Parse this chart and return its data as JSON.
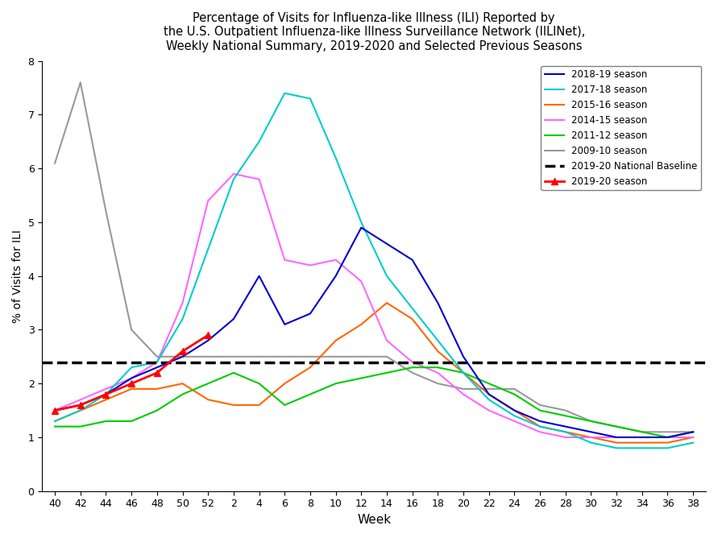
{
  "title": "Percentage of Visits for Influenza-like Illness (ILI) Reported by\nthe U.S. Outpatient Influenza-like Illness Surveillance Network (IILINet),\nWeekly National Summary, 2019-2020 and Selected Previous Seasons",
  "xlabel": "Week",
  "ylabel": "% of Visits for ILI",
  "ylim": [
    0,
    8
  ],
  "baseline": 2.4,
  "x_tick_labels": [
    "40",
    "42",
    "44",
    "46",
    "48",
    "50",
    "52",
    "2",
    "4",
    "6",
    "8",
    "10",
    "12",
    "14",
    "16",
    "18",
    "20",
    "22",
    "24",
    "26",
    "28",
    "30",
    "32",
    "34",
    "36",
    "38"
  ],
  "seasons": {
    "2018-19 season": {
      "color": "#0000CC",
      "linestyle": "-",
      "linewidth": 1.5,
      "marker": null,
      "zorder": 5,
      "data": [
        1.5,
        1.6,
        1.8,
        2.1,
        2.3,
        2.5,
        2.8,
        3.2,
        4.0,
        3.1,
        3.3,
        4.0,
        4.9,
        4.6,
        4.3,
        3.5,
        2.5,
        1.8,
        1.5,
        1.3,
        1.2,
        1.1,
        1.0,
        1.0,
        1.0,
        1.1
      ]
    },
    "2017-18 season": {
      "color": "#00CCCC",
      "linestyle": "-",
      "linewidth": 1.5,
      "marker": null,
      "zorder": 4,
      "data": [
        1.3,
        1.5,
        1.8,
        2.3,
        2.4,
        3.2,
        4.5,
        5.8,
        6.5,
        7.4,
        7.3,
        6.2,
        5.0,
        4.0,
        3.4,
        2.8,
        2.2,
        1.7,
        1.4,
        1.2,
        1.1,
        0.9,
        0.8,
        0.8,
        0.8,
        0.9
      ]
    },
    "2015-16 season": {
      "color": "#FF6600",
      "linestyle": "-",
      "linewidth": 1.5,
      "marker": null,
      "zorder": 3,
      "data": [
        1.3,
        1.5,
        1.7,
        1.9,
        1.9,
        2.0,
        1.7,
        1.6,
        1.6,
        2.0,
        2.3,
        2.8,
        3.1,
        3.5,
        3.2,
        2.6,
        2.2,
        1.8,
        1.5,
        1.2,
        1.1,
        1.0,
        0.9,
        0.9,
        0.9,
        1.0
      ]
    },
    "2014-15 season": {
      "color": "#FF66FF",
      "linestyle": "-",
      "linewidth": 1.5,
      "marker": null,
      "zorder": 3,
      "data": [
        1.5,
        1.7,
        1.9,
        2.1,
        2.4,
        3.5,
        5.4,
        5.9,
        5.8,
        4.3,
        4.2,
        4.3,
        3.9,
        2.8,
        2.4,
        2.2,
        1.8,
        1.5,
        1.3,
        1.1,
        1.0,
        1.0,
        1.0,
        1.0,
        1.0,
        1.0
      ]
    },
    "2011-12 season": {
      "color": "#00CC00",
      "linestyle": "-",
      "linewidth": 1.5,
      "marker": null,
      "zorder": 3,
      "data": [
        1.2,
        1.2,
        1.3,
        1.3,
        1.5,
        1.8,
        2.0,
        2.2,
        2.0,
        1.6,
        1.8,
        2.0,
        2.1,
        2.2,
        2.3,
        2.3,
        2.2,
        2.0,
        1.8,
        1.5,
        1.4,
        1.3,
        1.2,
        1.1,
        1.0,
        1.1
      ]
    },
    "2009-10 season": {
      "color": "#999999",
      "linestyle": "-",
      "linewidth": 1.5,
      "marker": null,
      "zorder": 2,
      "data": [
        6.1,
        7.6,
        5.2,
        3.0,
        2.5,
        2.5,
        2.5,
        2.5,
        2.5,
        2.5,
        2.5,
        2.5,
        2.5,
        2.5,
        2.2,
        2.0,
        1.9,
        1.9,
        1.9,
        1.6,
        1.5,
        1.3,
        1.2,
        1.1,
        1.1,
        1.1
      ]
    },
    "2019-20 season": {
      "color": "#FF0000",
      "linestyle": "-",
      "linewidth": 2.0,
      "marker": "^",
      "markersize": 6,
      "zorder": 6,
      "data": [
        1.5,
        1.6,
        1.8,
        2.0,
        2.2,
        2.6,
        2.9,
        null,
        null,
        null,
        null,
        null,
        null,
        null,
        null,
        null,
        null,
        null,
        null,
        null,
        null,
        null,
        null,
        null,
        null,
        null
      ]
    }
  }
}
